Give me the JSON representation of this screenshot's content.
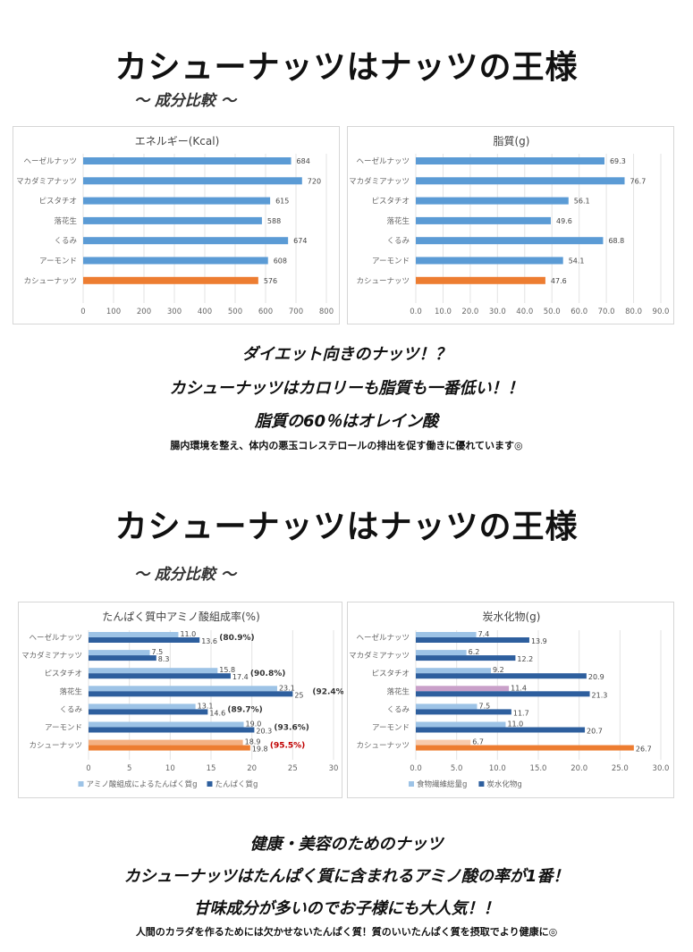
{
  "section1": {
    "title": "カシューナッツはナッツの王様",
    "subtitle": "～ 成分比較 ～",
    "msg1": "ダイエット向きのナッツ！？",
    "msg2": "カシューナッツはカロリーも脂質も一番低い！！",
    "msg3": "脂質の60％はオレイン酸",
    "note": "腸内環境を整え、体内の悪玉コレステロールの排出を促す働きに優れています◎"
  },
  "section2": {
    "title": "カシューナッツはナッツの王様",
    "subtitle": "～ 成分比較 ～",
    "msg1": "健康・美容のためのナッツ",
    "msg2": "カシューナッツはたんぱく質に含まれるアミノ酸の率が1番！",
    "msg3": "甘味成分が多いのでお子様にも大人気！！",
    "note": "人間のカラダを作るためには欠かせないたんぱく質！質のいいたんぱく質を摂取でより健康に◎"
  },
  "colors": {
    "blue": "#5b9bd5",
    "orange": "#ed7d31",
    "lightblue": "#9dc3e6",
    "darkblue": "#2e5f9e",
    "lightorange": "#f4b183",
    "pink": "#c9a0c9",
    "red": "#c00000"
  },
  "chart_data": [
    {
      "type": "bar",
      "title": "エネルギー(Kcal)",
      "categories": [
        "ヘーゼルナッツ",
        "マカダミアナッツ",
        "ピスタチオ",
        "落花生",
        "くるみ",
        "アーモンド",
        "カシューナッツ"
      ],
      "values": [
        684,
        720,
        615,
        588,
        674,
        608,
        576
      ],
      "xlim": [
        0,
        800
      ],
      "ticks": [
        "0",
        "100",
        "200",
        "300",
        "400",
        "500",
        "600",
        "700",
        "800"
      ],
      "highlight": "カシューナッツ",
      "grid": true
    },
    {
      "type": "bar",
      "title": "脂質(g)",
      "categories": [
        "ヘーゼルナッツ",
        "マカダミアナッツ",
        "ピスタチオ",
        "落花生",
        "くるみ",
        "アーモンド",
        "カシューナッツ"
      ],
      "values": [
        69.3,
        76.7,
        56.1,
        49.6,
        68.8,
        54.1,
        47.6
      ],
      "xlim": [
        0,
        90
      ],
      "ticks": [
        "0.0",
        "10.0",
        "20.0",
        "30.0",
        "40.0",
        "50.0",
        "60.0",
        "70.0",
        "80.0",
        "90.0"
      ],
      "highlight": "カシューナッツ",
      "grid": true
    },
    {
      "type": "bar",
      "title": "たんぱく質中アミノ酸組成率(%)",
      "categories": [
        "ヘーゼルナッツ",
        "マカダミアナッツ",
        "ピスタチオ",
        "落花生",
        "くるみ",
        "アーモンド",
        "カシューナッツ"
      ],
      "series": [
        {
          "name": "アミノ酸組成によるたんぱく質g",
          "values": [
            11.0,
            7.5,
            15.8,
            23.1,
            13.1,
            19.0,
            18.9
          ]
        },
        {
          "name": "たんぱく質g",
          "values": [
            13.6,
            8.3,
            17.4,
            25.0,
            14.6,
            20.3,
            19.8
          ]
        }
      ],
      "labels1": [
        "11.0",
        "7.5",
        "15.8",
        "23.1",
        "13.1",
        "19.0",
        "18.9"
      ],
      "labels2": [
        "13.6",
        "8.3",
        "17.4",
        "25",
        "14.6",
        "20.3",
        "19.8"
      ],
      "annotations": [
        "(80.9%)",
        "",
        "(90.8%)",
        "(92.4%)",
        "(89.7%)",
        "(93.6%)",
        "(95.5%)"
      ],
      "xlim": [
        0,
        30
      ],
      "ticks": [
        "0",
        "5",
        "10",
        "15",
        "20",
        "25",
        "30"
      ],
      "legend": "bottom",
      "grid": true
    },
    {
      "type": "bar",
      "title": "炭水化物(g)",
      "categories": [
        "ヘーゼルナッツ",
        "マカダミアナッツ",
        "ピスタチオ",
        "落花生",
        "くるみ",
        "アーモンド",
        "カシューナッツ"
      ],
      "series": [
        {
          "name": "食物繊維総量g",
          "values": [
            7.4,
            6.2,
            9.2,
            11.4,
            7.5,
            11.0,
            6.7
          ]
        },
        {
          "name": "炭水化物g",
          "values": [
            13.9,
            12.2,
            20.9,
            21.3,
            11.7,
            20.7,
            26.7
          ]
        }
      ],
      "labels1": [
        "7.4",
        "6.2",
        "9.2",
        "11.4",
        "7.5",
        "11.0",
        "6.7"
      ],
      "labels2": [
        "13.9",
        "12.2",
        "20.9",
        "21.3",
        "11.7",
        "20.7",
        "26.7"
      ],
      "xlim": [
        0,
        30
      ],
      "ticks": [
        "0.0",
        "5.0",
        "10.0",
        "15.0",
        "20.0",
        "25.0",
        "30.0"
      ],
      "legend": "bottom",
      "grid": true
    }
  ]
}
